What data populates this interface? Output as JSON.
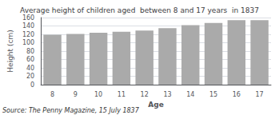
{
  "chart_data": {
    "type": "bar",
    "title": "Average height of children aged  between 8 and 17 years  in 1837",
    "xlabel": "Age",
    "ylabel": "Height (cm)",
    "annotations": [
      "Source: The Penny Magazine, 15 July 1837"
    ],
    "categories": [
      "8",
      "9",
      "10",
      "11",
      "12",
      "13",
      "14",
      "15",
      "16",
      "17"
    ],
    "values": [
      119,
      121,
      124,
      126,
      129,
      135,
      142,
      147,
      154,
      154
    ],
    "color": "#aaaaaa",
    "ylim": [
      0,
      160
    ],
    "yticks": [
      0,
      20,
      40,
      60,
      80,
      100,
      120,
      140,
      160
    ],
    "grid": true
  }
}
